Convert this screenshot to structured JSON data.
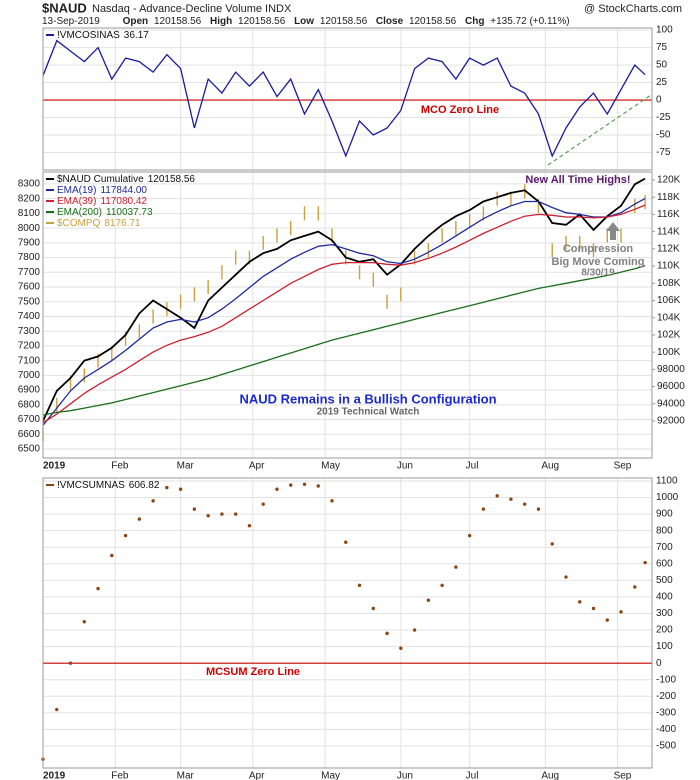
{
  "header": {
    "symbol": "$NAUD",
    "description": "Nasdaq - Advance-Decline Volume INDX",
    "watermark": "@ StockCharts.com",
    "date": "13-Sep-2019",
    "quote": [
      {
        "label": "Open",
        "value": "120158.56"
      },
      {
        "label": "High",
        "value": "120158.56"
      },
      {
        "label": "Low",
        "value": "120158.56"
      },
      {
        "label": "Close",
        "value": "120158.56"
      },
      {
        "label": "Chg",
        "value": "+135.72 (+0.11%)"
      }
    ]
  },
  "chart_data": [
    {
      "type": "line",
      "xlim": [
        0,
        177
      ],
      "xticks": [
        0,
        21,
        40,
        61,
        82,
        104,
        124,
        146,
        167
      ],
      "x": [
        0,
        4,
        8,
        12,
        16,
        20,
        24,
        28,
        32,
        36,
        40,
        44,
        48,
        52,
        56,
        60,
        64,
        68,
        72,
        76,
        80,
        84,
        88,
        92,
        96,
        100,
        104,
        108,
        112,
        116,
        120,
        124,
        128,
        132,
        136,
        140,
        144,
        148,
        152,
        156,
        160,
        164,
        168,
        172,
        175
      ],
      "ylim": [
        -100,
        103
      ],
      "yticks": [
        100,
        75,
        50,
        25,
        0,
        -25,
        -50,
        -75
      ],
      "yaxis_side": "right",
      "grid": true,
      "zero_line": {
        "value": 0,
        "label": "MCO Zero Line",
        "color": "#cc0000"
      },
      "series": [
        {
          "name": "!VMCOSINAS",
          "last_label": "36.17",
          "color": "#1a1a9c",
          "style": "line",
          "values": [
            35,
            85,
            70,
            55,
            75,
            30,
            60,
            55,
            40,
            65,
            45,
            -40,
            30,
            10,
            40,
            20,
            40,
            5,
            30,
            -20,
            15,
            -30,
            -80,
            -30,
            -50,
            -40,
            -15,
            45,
            60,
            55,
            30,
            60,
            50,
            60,
            20,
            10,
            -20,
            -80,
            -40,
            -10,
            10,
            -20,
            15,
            50,
            36.17
          ]
        }
      ]
    },
    {
      "type": "line",
      "xlim": [
        0,
        177
      ],
      "xticks": [
        {
          "value": 0,
          "label": "2019"
        },
        {
          "value": 21,
          "label": "Feb"
        },
        {
          "value": 40,
          "label": "Mar"
        },
        {
          "value": 61,
          "label": "Apr"
        },
        {
          "value": 82,
          "label": "May"
        },
        {
          "value": 104,
          "label": "Jun"
        },
        {
          "value": 124,
          "label": "Jul"
        },
        {
          "value": 146,
          "label": "Aug"
        },
        {
          "value": 167,
          "label": "Sep"
        }
      ],
      "x": [
        0,
        4,
        8,
        12,
        16,
        20,
        24,
        28,
        32,
        36,
        40,
        44,
        48,
        52,
        56,
        60,
        64,
        68,
        72,
        76,
        80,
        84,
        88,
        92,
        96,
        100,
        104,
        108,
        112,
        116,
        120,
        124,
        128,
        132,
        136,
        140,
        144,
        148,
        152,
        156,
        160,
        164,
        168,
        172,
        175
      ],
      "ylim": [
        6439,
        8381
      ],
      "yticks": [
        8300,
        8200,
        8100,
        8000,
        7900,
        7800,
        7700,
        7600,
        7500,
        7400,
        7300,
        7200,
        7100,
        7000,
        6900,
        6800,
        6700,
        6600,
        6500
      ],
      "yaxis_side": "left",
      "grid": true,
      "y2lim": [
        87700,
        120930
      ],
      "y2ticks": [
        {
          "value": 120000,
          "label": "120K"
        },
        {
          "value": 118000,
          "label": "118K"
        },
        {
          "value": 116000,
          "label": "116K"
        },
        {
          "value": 114000,
          "label": "114K"
        },
        {
          "value": 112000,
          "label": "112K"
        },
        {
          "value": 110000,
          "label": "110K"
        },
        {
          "value": 108000,
          "label": "108K"
        },
        {
          "value": 106000,
          "label": "106K"
        },
        {
          "value": 104000,
          "label": "104K"
        },
        {
          "value": 102000,
          "label": "102K"
        },
        {
          "value": 100000,
          "label": "100K"
        },
        98000,
        96000,
        94000,
        92000
      ],
      "series": [
        {
          "name": "$NAUD Cumulative",
          "last_label": "120158.56",
          "color": "#000000",
          "style": "line",
          "axis": "y2",
          "values": [
            92000,
            95500,
            97000,
            99000,
            99500,
            100500,
            102000,
            104500,
            106000,
            105000,
            104000,
            102800,
            106000,
            107500,
            109000,
            110500,
            111500,
            112000,
            113000,
            113500,
            114000,
            113000,
            111000,
            110500,
            110800,
            109000,
            110200,
            112000,
            113500,
            114800,
            115800,
            116500,
            117500,
            118000,
            118500,
            118800,
            117500,
            115000,
            114800,
            116000,
            114200,
            115800,
            117000,
            119500,
            120158.56
          ]
        },
        {
          "name": "EMA(19)",
          "last_label": "117844.00",
          "color": "#1f2a9c",
          "style": "line",
          "axis": "y2",
          "values": [
            91500,
            93500,
            95500,
            97000,
            98000,
            99000,
            100200,
            101500,
            102800,
            103500,
            103800,
            103500,
            104000,
            105000,
            106200,
            107500,
            108800,
            109800,
            110800,
            111600,
            112300,
            112500,
            112000,
            111500,
            111200,
            110500,
            110300,
            110800,
            111600,
            112500,
            113500,
            114500,
            115500,
            116300,
            117000,
            117500,
            117500,
            116800,
            116200,
            116000,
            115700,
            115700,
            116200,
            117200,
            117844
          ]
        },
        {
          "name": "EMA(39)",
          "last_label": "117080.42",
          "color": "#cc2030",
          "style": "line",
          "axis": "y2",
          "values": [
            91800,
            92800,
            94000,
            95200,
            96200,
            97100,
            98000,
            99000,
            100000,
            100800,
            101400,
            101800,
            102300,
            103000,
            104000,
            105000,
            106000,
            107000,
            108000,
            108800,
            109600,
            110200,
            110400,
            110400,
            110400,
            110200,
            110100,
            110400,
            110900,
            111500,
            112200,
            113000,
            113800,
            114500,
            115200,
            115800,
            116000,
            115900,
            115700,
            115700,
            115600,
            115700,
            116000,
            116600,
            117080.42
          ]
        },
        {
          "name": "EMA(200)",
          "last_label": "110037.73",
          "color": "#1a6e1a",
          "style": "line",
          "axis": "y2",
          "values": [
            92700,
            93000,
            93200,
            93500,
            93800,
            94100,
            94500,
            94900,
            95300,
            95700,
            96100,
            96500,
            96900,
            97400,
            97900,
            98400,
            98900,
            99400,
            99900,
            100400,
            100900,
            101400,
            101800,
            102200,
            102600,
            103000,
            103400,
            103800,
            104200,
            104600,
            105000,
            105400,
            105800,
            106200,
            106600,
            107000,
            107400,
            107700,
            108000,
            108300,
            108600,
            108900,
            109300,
            109700,
            110037.73
          ]
        },
        {
          "name": "$COMPQ",
          "last_label": "8176.71",
          "color": "#c8a040",
          "style": "bars",
          "values": [
            6600,
            6800,
            6950,
            7000,
            7100,
            7150,
            7250,
            7300,
            7400,
            7450,
            7500,
            7550,
            7600,
            7700,
            7800,
            7800,
            7900,
            7950,
            8000,
            8100,
            8100,
            7950,
            7800,
            7700,
            7650,
            7500,
            7550,
            7800,
            7850,
            7950,
            8000,
            8050,
            8100,
            8200,
            8200,
            8250,
            8150,
            7850,
            7900,
            7900,
            7850,
            7950,
            7950,
            8150,
            8176.71
          ]
        }
      ],
      "annotations": [
        "New All Time Highs!",
        "Compression",
        "Big Move Coming",
        "8/30/19",
        "NAUD Remains in a Bullish Configuration",
        "2019 Technical Watch"
      ]
    },
    {
      "type": "line",
      "xlim": [
        0,
        177
      ],
      "xticks": [
        {
          "value": 0,
          "label": "2019"
        },
        {
          "value": 21,
          "label": "Feb"
        },
        {
          "value": 40,
          "label": "Mar"
        },
        {
          "value": 61,
          "label": "Apr"
        },
        {
          "value": 82,
          "label": "May"
        },
        {
          "value": 104,
          "label": "Jun"
        },
        {
          "value": 124,
          "label": "Jul"
        },
        {
          "value": 146,
          "label": "Aug"
        },
        {
          "value": 167,
          "label": "Sep"
        }
      ],
      "x": [
        0,
        4,
        8,
        12,
        16,
        20,
        24,
        28,
        32,
        36,
        40,
        44,
        48,
        52,
        56,
        60,
        64,
        68,
        72,
        76,
        80,
        84,
        88,
        92,
        96,
        100,
        104,
        108,
        112,
        116,
        120,
        124,
        128,
        132,
        136,
        140,
        144,
        148,
        152,
        156,
        160,
        164,
        168,
        172,
        175
      ],
      "ylim": [
        -633,
        1118
      ],
      "yticks": [
        1100,
        1000,
        900,
        800,
        700,
        600,
        500,
        400,
        300,
        200,
        100,
        0,
        -100,
        -200,
        -300,
        -400,
        -500
      ],
      "yaxis_side": "right",
      "grid": true,
      "zero_line": {
        "value": 0,
        "label": "MCSUM Zero Line",
        "color": "#cc0000"
      },
      "series": [
        {
          "name": "!VMCSUMNAS",
          "last_label": "606.82",
          "color": "#8b4513",
          "style": "dots",
          "values": [
            -580,
            -280,
            0,
            250,
            450,
            650,
            770,
            870,
            980,
            1060,
            1050,
            930,
            890,
            900,
            900,
            830,
            960,
            1050,
            1075,
            1080,
            1070,
            980,
            730,
            470,
            330,
            180,
            90,
            200,
            380,
            470,
            580,
            770,
            930,
            1010,
            990,
            960,
            930,
            720,
            520,
            370,
            330,
            260,
            310,
            460,
            606.82
          ]
        }
      ]
    }
  ]
}
